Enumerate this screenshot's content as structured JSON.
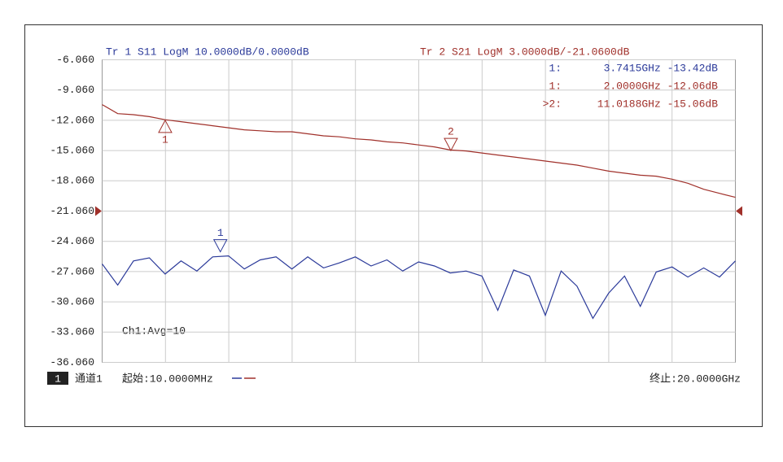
{
  "chart_data": {
    "type": "line",
    "trace_labels": [
      {
        "text": "Tr 1  S11 LogM 10.0000dB/0.0000dB",
        "color": "#2b3a9a"
      },
      {
        "text": "Tr 2  S21 LogM 3.0000dB/-21.0600dB",
        "color": "#a0302a"
      }
    ],
    "readout": [
      {
        "prefix": "1:",
        "text": "3.7415GHz -13.42dB",
        "color": "#2b3a9a"
      },
      {
        "prefix": "1:",
        "text": "2.0000GHz -12.06dB",
        "color": "#a0302a"
      },
      {
        "prefix": ">2:",
        "text": "11.0188GHz -15.06dB",
        "color": "#a0302a"
      }
    ],
    "annotation": "Ch1:Avg=10",
    "channel_number": "1",
    "channel_name": "通道1",
    "start_label": "起始:10.0000MHz",
    "stop_label": "终止:20.0000GHz",
    "reference": -21.06,
    "xlim": [
      0.01,
      20
    ],
    "ylim": [
      -36.06,
      -6.06
    ],
    "yticks": [
      {
        "value": -36.06,
        "label": "-36.060"
      },
      {
        "value": -33.06,
        "label": "-33.060"
      },
      {
        "value": -30.06,
        "label": "-30.060"
      },
      {
        "value": -27.06,
        "label": "-27.060"
      },
      {
        "value": -24.06,
        "label": "-24.060"
      },
      {
        "value": -21.06,
        "label": "-21.060"
      },
      {
        "value": -18.06,
        "label": "-18.060"
      },
      {
        "value": -15.06,
        "label": "-15.060"
      },
      {
        "value": -12.06,
        "label": "-12.060"
      },
      {
        "value": -9.06,
        "label": "-9.060"
      },
      {
        "value": -6.06,
        "label": "-6.060"
      }
    ],
    "grid": true,
    "x": [
      0.01,
      0.5,
      1,
      1.5,
      2,
      2.5,
      3,
      3.5,
      4,
      4.5,
      5,
      5.5,
      6,
      6.5,
      7,
      7.5,
      8,
      8.5,
      9,
      9.5,
      10,
      10.5,
      11,
      11.5,
      12,
      12.5,
      13,
      13.5,
      14,
      14.5,
      15,
      15.5,
      16,
      16.5,
      17,
      17.5,
      18,
      18.5,
      19,
      19.5,
      20
    ],
    "series": [
      {
        "color": "#2b3a9a",
        "values": [
          -26.3,
          -28.4,
          -26.0,
          -25.7,
          -27.3,
          -26.0,
          -27.0,
          -25.6,
          -25.5,
          -26.8,
          -25.9,
          -25.6,
          -26.8,
          -25.6,
          -26.7,
          -26.2,
          -25.6,
          -26.5,
          -25.9,
          -27.0,
          -26.1,
          -26.5,
          -27.2,
          -27.0,
          -27.5,
          -30.9,
          -26.9,
          -27.5,
          -31.4,
          -27.0,
          -28.5,
          -31.7,
          -29.2,
          -27.5,
          -30.5,
          -27.1,
          -26.6,
          -27.6,
          -26.7,
          -27.6,
          -26.0
        ]
      },
      {
        "color": "#a0302a",
        "values": [
          -10.5,
          -11.4,
          -11.5,
          -11.7,
          -12.0,
          -12.2,
          -12.4,
          -12.6,
          -12.8,
          -13.0,
          -13.1,
          -13.2,
          -13.2,
          -13.4,
          -13.6,
          -13.7,
          -13.9,
          -14.0,
          -14.2,
          -14.3,
          -14.5,
          -14.7,
          -15.0,
          -15.1,
          -15.3,
          -15.5,
          -15.7,
          -15.9,
          -16.1,
          -16.3,
          -16.5,
          -16.8,
          -17.1,
          -17.3,
          -17.5,
          -17.6,
          -17.9,
          -18.3,
          -18.9,
          -19.3,
          -19.7
        ]
      }
    ],
    "markers": [
      {
        "label": "1",
        "series": 1,
        "x": 2.0,
        "y": -12.06,
        "direction": "up"
      },
      {
        "label": "2",
        "series": 1,
        "x": 11.0188,
        "y": -15.06,
        "direction": "down"
      },
      {
        "label": "1",
        "series": 0,
        "x": 3.7415,
        "y": -25.1,
        "direction": "down"
      }
    ]
  }
}
